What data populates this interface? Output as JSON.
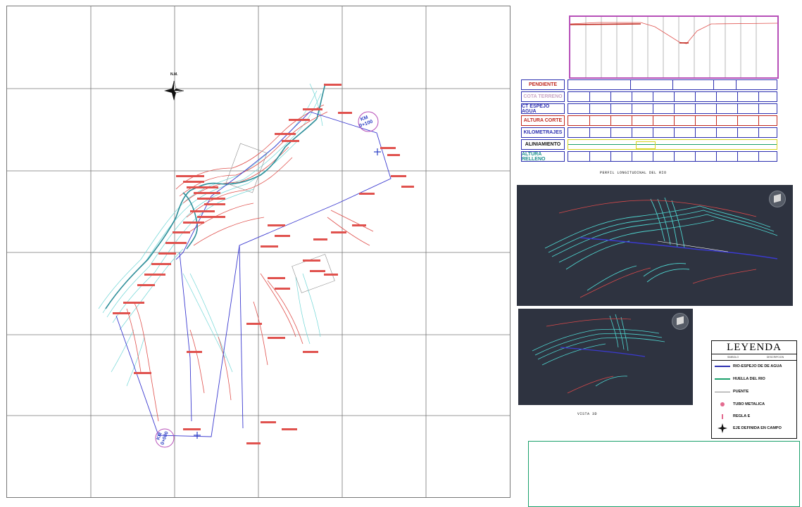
{
  "north_label": "N.M.",
  "km_start": {
    "line1": "KM",
    "line2": "0+000"
  },
  "km_end": {
    "line1": "KM",
    "line2": "0+100"
  },
  "profile_bands": [
    {
      "label": "PENDIENTE",
      "color": "#c0281e"
    },
    {
      "label": "COTA TERRENO",
      "color": "#c9a6c6"
    },
    {
      "label": "CT ESPEJO AGUA",
      "color": "#2c2fb0"
    },
    {
      "label": "ALTURA CORTE",
      "color": "#c0281e"
    },
    {
      "label": "KILOMETRAJES",
      "color": "#2c2fb0"
    },
    {
      "label": "ALINIAMIENTO",
      "color": "#111111"
    },
    {
      "label": "ALTURA RELLENO",
      "color": "#1c8f8f"
    }
  ],
  "profile_caption": "PERFIL LONGITUDINAL DEL RIO",
  "view_caption": "VISTA 3D",
  "legend": {
    "title": "LEYENDA",
    "col_symbol": "SIMBOLO",
    "col_description": "DESCRIPCION",
    "items": [
      {
        "label": "RIO-ESPEJO DE DE AGUA",
        "symbol": "line",
        "color": "#2c2fb0"
      },
      {
        "label": "HUELLA DEL RIO",
        "symbol": "line",
        "color": "#1aa06b"
      },
      {
        "label": "PUENTE",
        "symbol": "line",
        "color": "#888888"
      },
      {
        "label": "TUBO METALICA",
        "symbol": "circle",
        "color": "#e36b8f"
      },
      {
        "label": "REGLA E",
        "symbol": "tick",
        "color": "#e36b8f"
      },
      {
        "label": "EJE DEFINIDA EN CAMPO",
        "symbol": "star",
        "color": "#111111"
      }
    ]
  },
  "colors": {
    "contour_red": "#e0524e",
    "contour_cyan": "#5fd3d3",
    "river_blue": "#3b3ad0",
    "river_teal": "#2f8f9a",
    "grid": "#777777",
    "profile_frame": "#b64fb8",
    "view_bg": "#2e3340"
  },
  "icons": [
    "north-arrow-icon",
    "navigation-cube-icon"
  ]
}
